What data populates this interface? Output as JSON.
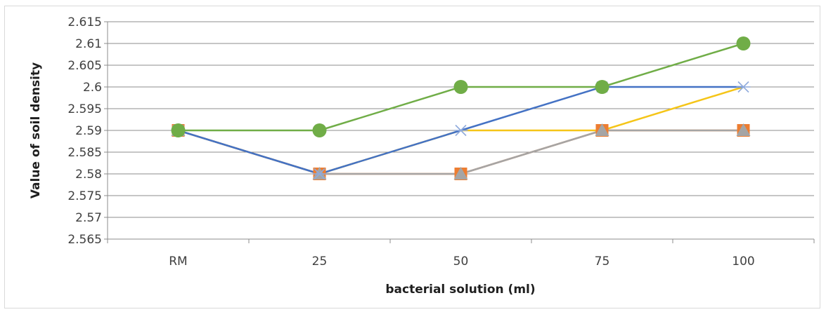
{
  "chart_data": {
    "type": "line",
    "categories": [
      "RM",
      "25",
      "50",
      "75",
      "100"
    ],
    "yticks": [
      "2.565",
      "2.57",
      "2.575",
      "2.58",
      "2.585",
      "2.59",
      "2.595",
      "2.6",
      "2.605",
      "2.61",
      "2.615"
    ],
    "ylim": [
      2.565,
      2.615
    ],
    "xlabel": "bacterial solution (ml)",
    "ylabel": "Value of soil density",
    "grid": true,
    "series": [
      {
        "color": "#F5C518",
        "marker": "none",
        "values": [
          2.59,
          2.58,
          2.59,
          2.59,
          2.6
        ]
      },
      {
        "color": "#ED7D31",
        "marker": "square",
        "values": [
          2.59,
          2.58,
          2.58,
          2.59,
          2.59
        ]
      },
      {
        "color": "#A5A5A5",
        "marker": "triangle",
        "values": [
          2.59,
          2.58,
          2.58,
          2.59,
          2.59
        ]
      },
      {
        "color": "#4472C4",
        "marker": "star",
        "values": [
          2.59,
          2.58,
          2.59,
          2.6,
          2.6
        ]
      },
      {
        "color": "#70AD47",
        "marker": "circle",
        "values": [
          2.59,
          2.59,
          2.6,
          2.6,
          2.61
        ]
      }
    ]
  }
}
